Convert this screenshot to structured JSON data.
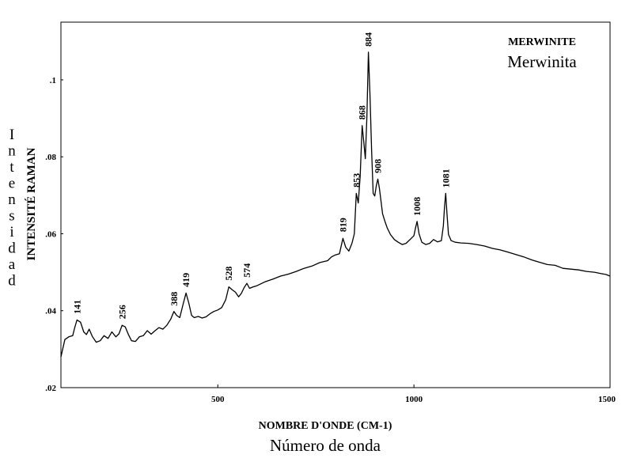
{
  "chart_data": {
    "type": "line",
    "title": "MERWINITE",
    "subtitle": "Merwinita",
    "xlabel": "NOMBRE D'ONDE (CM-1)",
    "xlabel_es": "Número de onda",
    "ylabel": "INTENSITÉ RAMAN",
    "ylabel_es": "Intensidad",
    "xlim": [
      100,
      1500
    ],
    "ylim": [
      0.02,
      0.115
    ],
    "x_ticks": [
      500,
      1000,
      1500
    ],
    "x_tick_labels": [
      "500",
      "1000",
      "1500"
    ],
    "y_ticks": [
      0.02,
      0.04,
      0.06,
      0.08,
      0.1
    ],
    "y_tick_labels": [
      ".02",
      ".04",
      ".06",
      ".08",
      ".1"
    ],
    "grid": false,
    "legend": "none",
    "peaks": [
      {
        "x": 141,
        "y": 0.0375,
        "label": "141"
      },
      {
        "x": 256,
        "y": 0.0362,
        "label": "256"
      },
      {
        "x": 388,
        "y": 0.0396,
        "label": "388"
      },
      {
        "x": 419,
        "y": 0.0445,
        "label": "419"
      },
      {
        "x": 528,
        "y": 0.0462,
        "label": "528"
      },
      {
        "x": 574,
        "y": 0.047,
        "label": "574"
      },
      {
        "x": 819,
        "y": 0.0588,
        "label": "819"
      },
      {
        "x": 853,
        "y": 0.0704,
        "label": "853"
      },
      {
        "x": 868,
        "y": 0.088,
        "label": "868"
      },
      {
        "x": 884,
        "y": 0.107,
        "label": "884"
      },
      {
        "x": 908,
        "y": 0.0741,
        "label": "908"
      },
      {
        "x": 1008,
        "y": 0.063,
        "label": "1008"
      },
      {
        "x": 1081,
        "y": 0.0703,
        "label": "1081"
      }
    ],
    "series": [
      {
        "x": [
          100,
          110,
          120,
          130,
          135,
          141,
          150,
          158,
          165,
          172,
          180,
          190,
          200,
          210,
          220,
          230,
          240,
          248,
          256,
          264,
          272,
          280,
          290,
          300,
          310,
          320,
          330,
          340,
          350,
          360,
          370,
          380,
          388,
          395,
          403,
          411,
          419,
          426,
          433,
          440,
          450,
          460,
          470,
          480,
          490,
          500,
          510,
          520,
          528,
          536,
          545,
          553,
          560,
          567,
          574,
          581,
          590,
          600,
          620,
          640,
          660,
          680,
          700,
          720,
          740,
          760,
          780,
          790,
          800,
          810,
          819,
          826,
          834,
          842,
          848,
          853,
          858,
          863,
          868,
          872,
          876,
          880,
          884,
          888,
          892,
          896,
          900,
          904,
          908,
          912,
          916,
          920,
          926,
          932,
          940,
          950,
          960,
          970,
          980,
          990,
          1000,
          1004,
          1008,
          1013,
          1020,
          1030,
          1040,
          1050,
          1060,
          1070,
          1075,
          1078,
          1081,
          1084,
          1088,
          1095,
          1105,
          1120,
          1140,
          1160,
          1180,
          1200,
          1220,
          1240,
          1260,
          1280,
          1300,
          1320,
          1340,
          1360,
          1380,
          1400,
          1420,
          1440,
          1460,
          1480,
          1490,
          1500
        ],
        "y": [
          0.028,
          0.0325,
          0.0332,
          0.0335,
          0.0355,
          0.0376,
          0.037,
          0.0345,
          0.0338,
          0.0352,
          0.0333,
          0.0318,
          0.0322,
          0.0335,
          0.0328,
          0.0345,
          0.0332,
          0.034,
          0.0362,
          0.0358,
          0.0338,
          0.0322,
          0.032,
          0.0332,
          0.0335,
          0.0348,
          0.0339,
          0.0348,
          0.0356,
          0.0352,
          0.0362,
          0.0378,
          0.0398,
          0.0388,
          0.0382,
          0.0415,
          0.0446,
          0.042,
          0.0388,
          0.0382,
          0.0385,
          0.0381,
          0.0384,
          0.0392,
          0.0398,
          0.0402,
          0.0408,
          0.0428,
          0.0462,
          0.0455,
          0.0448,
          0.0436,
          0.0445,
          0.046,
          0.0471,
          0.0458,
          0.0462,
          0.0465,
          0.0475,
          0.0482,
          0.049,
          0.0495,
          0.0502,
          0.051,
          0.0516,
          0.0525,
          0.053,
          0.054,
          0.0545,
          0.0548,
          0.0588,
          0.0565,
          0.0555,
          0.0575,
          0.06,
          0.0705,
          0.068,
          0.075,
          0.0881,
          0.084,
          0.0795,
          0.0905,
          0.1072,
          0.096,
          0.082,
          0.0705,
          0.0698,
          0.0725,
          0.0742,
          0.0718,
          0.0685,
          0.0652,
          0.0632,
          0.0615,
          0.0598,
          0.0585,
          0.0578,
          0.0572,
          0.0575,
          0.0585,
          0.0595,
          0.0615,
          0.0632,
          0.06,
          0.0578,
          0.0572,
          0.0575,
          0.0585,
          0.0579,
          0.0582,
          0.062,
          0.067,
          0.0705,
          0.0655,
          0.0598,
          0.0582,
          0.0578,
          0.0576,
          0.0575,
          0.0572,
          0.0568,
          0.0562,
          0.0558,
          0.0552,
          0.0546,
          0.054,
          0.0532,
          0.0526,
          0.052,
          0.0518,
          0.051,
          0.0508,
          0.0506,
          0.0502,
          0.05,
          0.0496,
          0.0494,
          0.049
        ]
      }
    ]
  }
}
